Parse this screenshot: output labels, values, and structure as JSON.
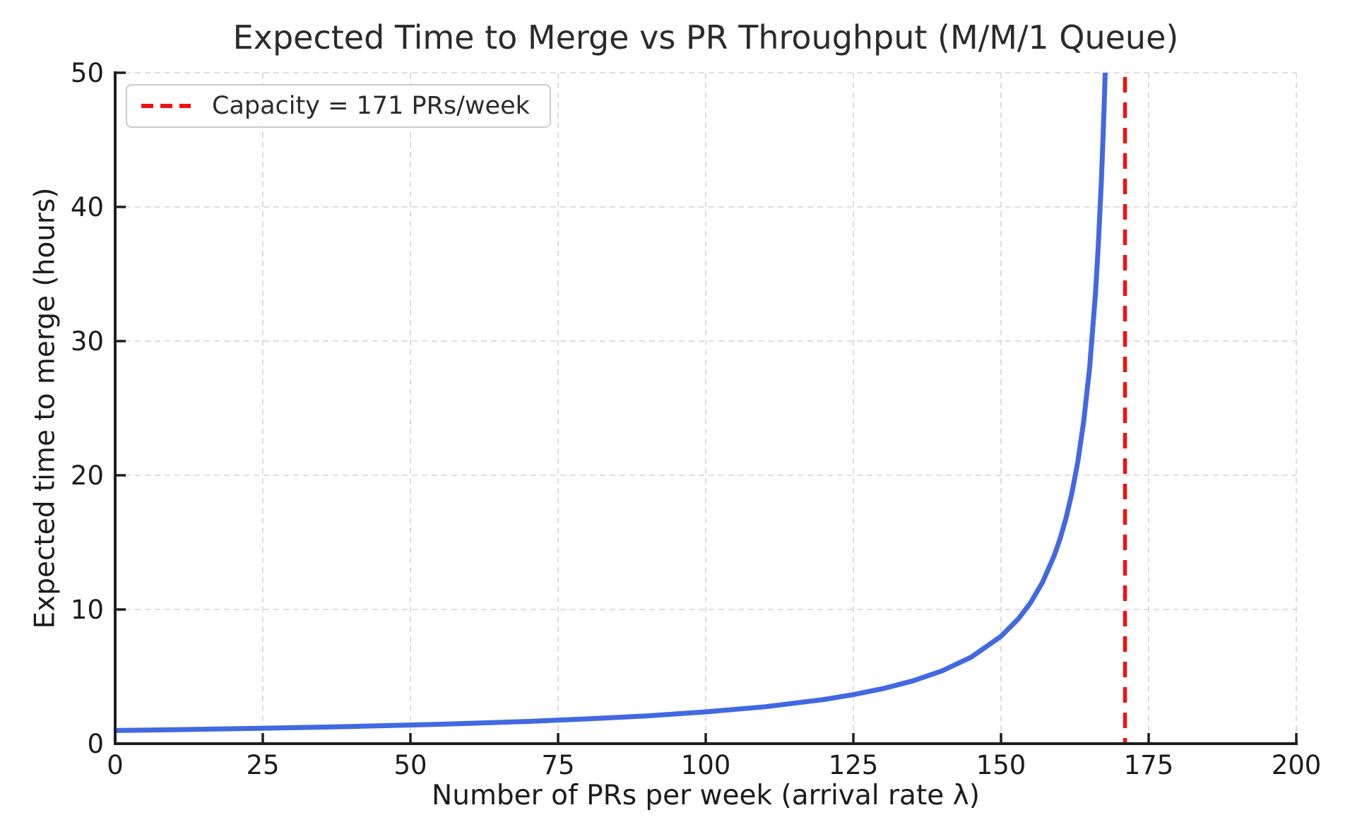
{
  "chart_data": {
    "type": "line",
    "title": "Expected Time to Merge vs PR Throughput (M/M/1 Queue)",
    "xlabel": "Number of PRs per week (arrival rate λ)",
    "ylabel": "Expected time to merge (hours)",
    "xlim": [
      0,
      200
    ],
    "ylim": [
      0,
      50
    ],
    "xticks": [
      0,
      25,
      50,
      75,
      100,
      125,
      150,
      175,
      200
    ],
    "yticks": [
      0,
      10,
      20,
      30,
      40,
      50
    ],
    "grid": true,
    "grid_style": "dashed",
    "legend": {
      "position": "upper-left",
      "entries": [
        {
          "label": "Capacity = 171 PRs/week",
          "color": "#f01212",
          "style": "dashed"
        }
      ]
    },
    "capacity_line": {
      "x": 171,
      "color": "#f01212",
      "style": "dashed"
    },
    "colors": {
      "curve": "#4169e1",
      "capacity": "#f01212",
      "grid": "#d3d3dc",
      "spine": "#1e1e1e",
      "text": "#1c1c1c"
    },
    "series": [
      {
        "name": "Expected time to merge",
        "color": "#4169e1",
        "model": "W(λ) = 168 / (171 − λ) hours (M/M/1 queue, capacity 171 PRs/week)",
        "x": [
          0,
          10,
          20,
          30,
          40,
          50,
          60,
          70,
          80,
          90,
          100,
          110,
          120,
          125,
          130,
          135,
          140,
          145,
          150,
          153,
          155,
          157,
          159,
          160,
          161,
          162,
          163,
          164,
          165,
          166,
          166.5,
          167,
          167.3,
          167.5,
          167.64
        ],
        "y": [
          0.98,
          1.04,
          1.11,
          1.19,
          1.28,
          1.39,
          1.51,
          1.66,
          1.85,
          2.07,
          2.37,
          2.75,
          3.29,
          3.65,
          4.1,
          4.67,
          5.42,
          6.46,
          8.0,
          9.33,
          10.5,
          12.0,
          14.0,
          15.27,
          16.8,
          18.67,
          21.0,
          24.0,
          28.0,
          33.6,
          37.33,
          42.0,
          45.41,
          48.0,
          50.0
        ]
      }
    ]
  }
}
